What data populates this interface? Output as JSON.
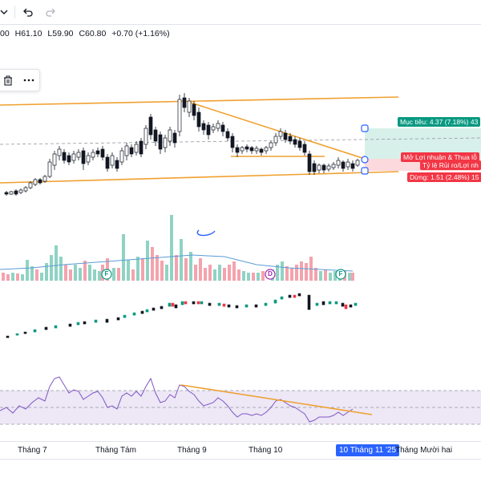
{
  "toolbar": {
    "chevron_icon": "chevron-down-icon",
    "undo_icon": "undo-icon",
    "redo_icon": "redo-icon"
  },
  "legend": {
    "open": "00",
    "high": "H61.10",
    "low": "L59.90",
    "close": "C60.80",
    "change": "+0.70 (+1.16%)"
  },
  "float_toolbar": {
    "trash_icon": "trash-icon",
    "more_icon": "more-horizontal-icon"
  },
  "position_tool": {
    "target_label": "Mục tiêu: 4.37 (7.18%) 43",
    "pnl_label": "Mở Lợi nhuận & Thua lỗ",
    "ratio_label": "Tỷ lệ Rủi ro/Lợi nh",
    "stop_label": "Dừng: 1.51 (2.48%) 15",
    "colors": {
      "target": "#089981",
      "stop": "#f23645",
      "target_zone": "#d7f0ea",
      "stop_zone": "#fbd9dc"
    }
  },
  "events": [
    {
      "symbol": "F",
      "color": "#089981"
    },
    {
      "symbol": "D",
      "color": "#9c27b0"
    },
    {
      "symbol": "F",
      "color": "#089981"
    }
  ],
  "time_axis": {
    "ticks": [
      "Tháng 7",
      "Tháng Tám",
      "Tháng 9",
      "Tháng 10",
      "Tháng Mười hai"
    ],
    "highlight": "10 Tháng 11 '25"
  },
  "colors": {
    "up": "#089981",
    "down": "#f23645",
    "trendline": "#f0a030",
    "rsi_line": "#7e57c2",
    "volume_up": "#8fd3c4",
    "volume_down": "#f4a3ad"
  }
}
